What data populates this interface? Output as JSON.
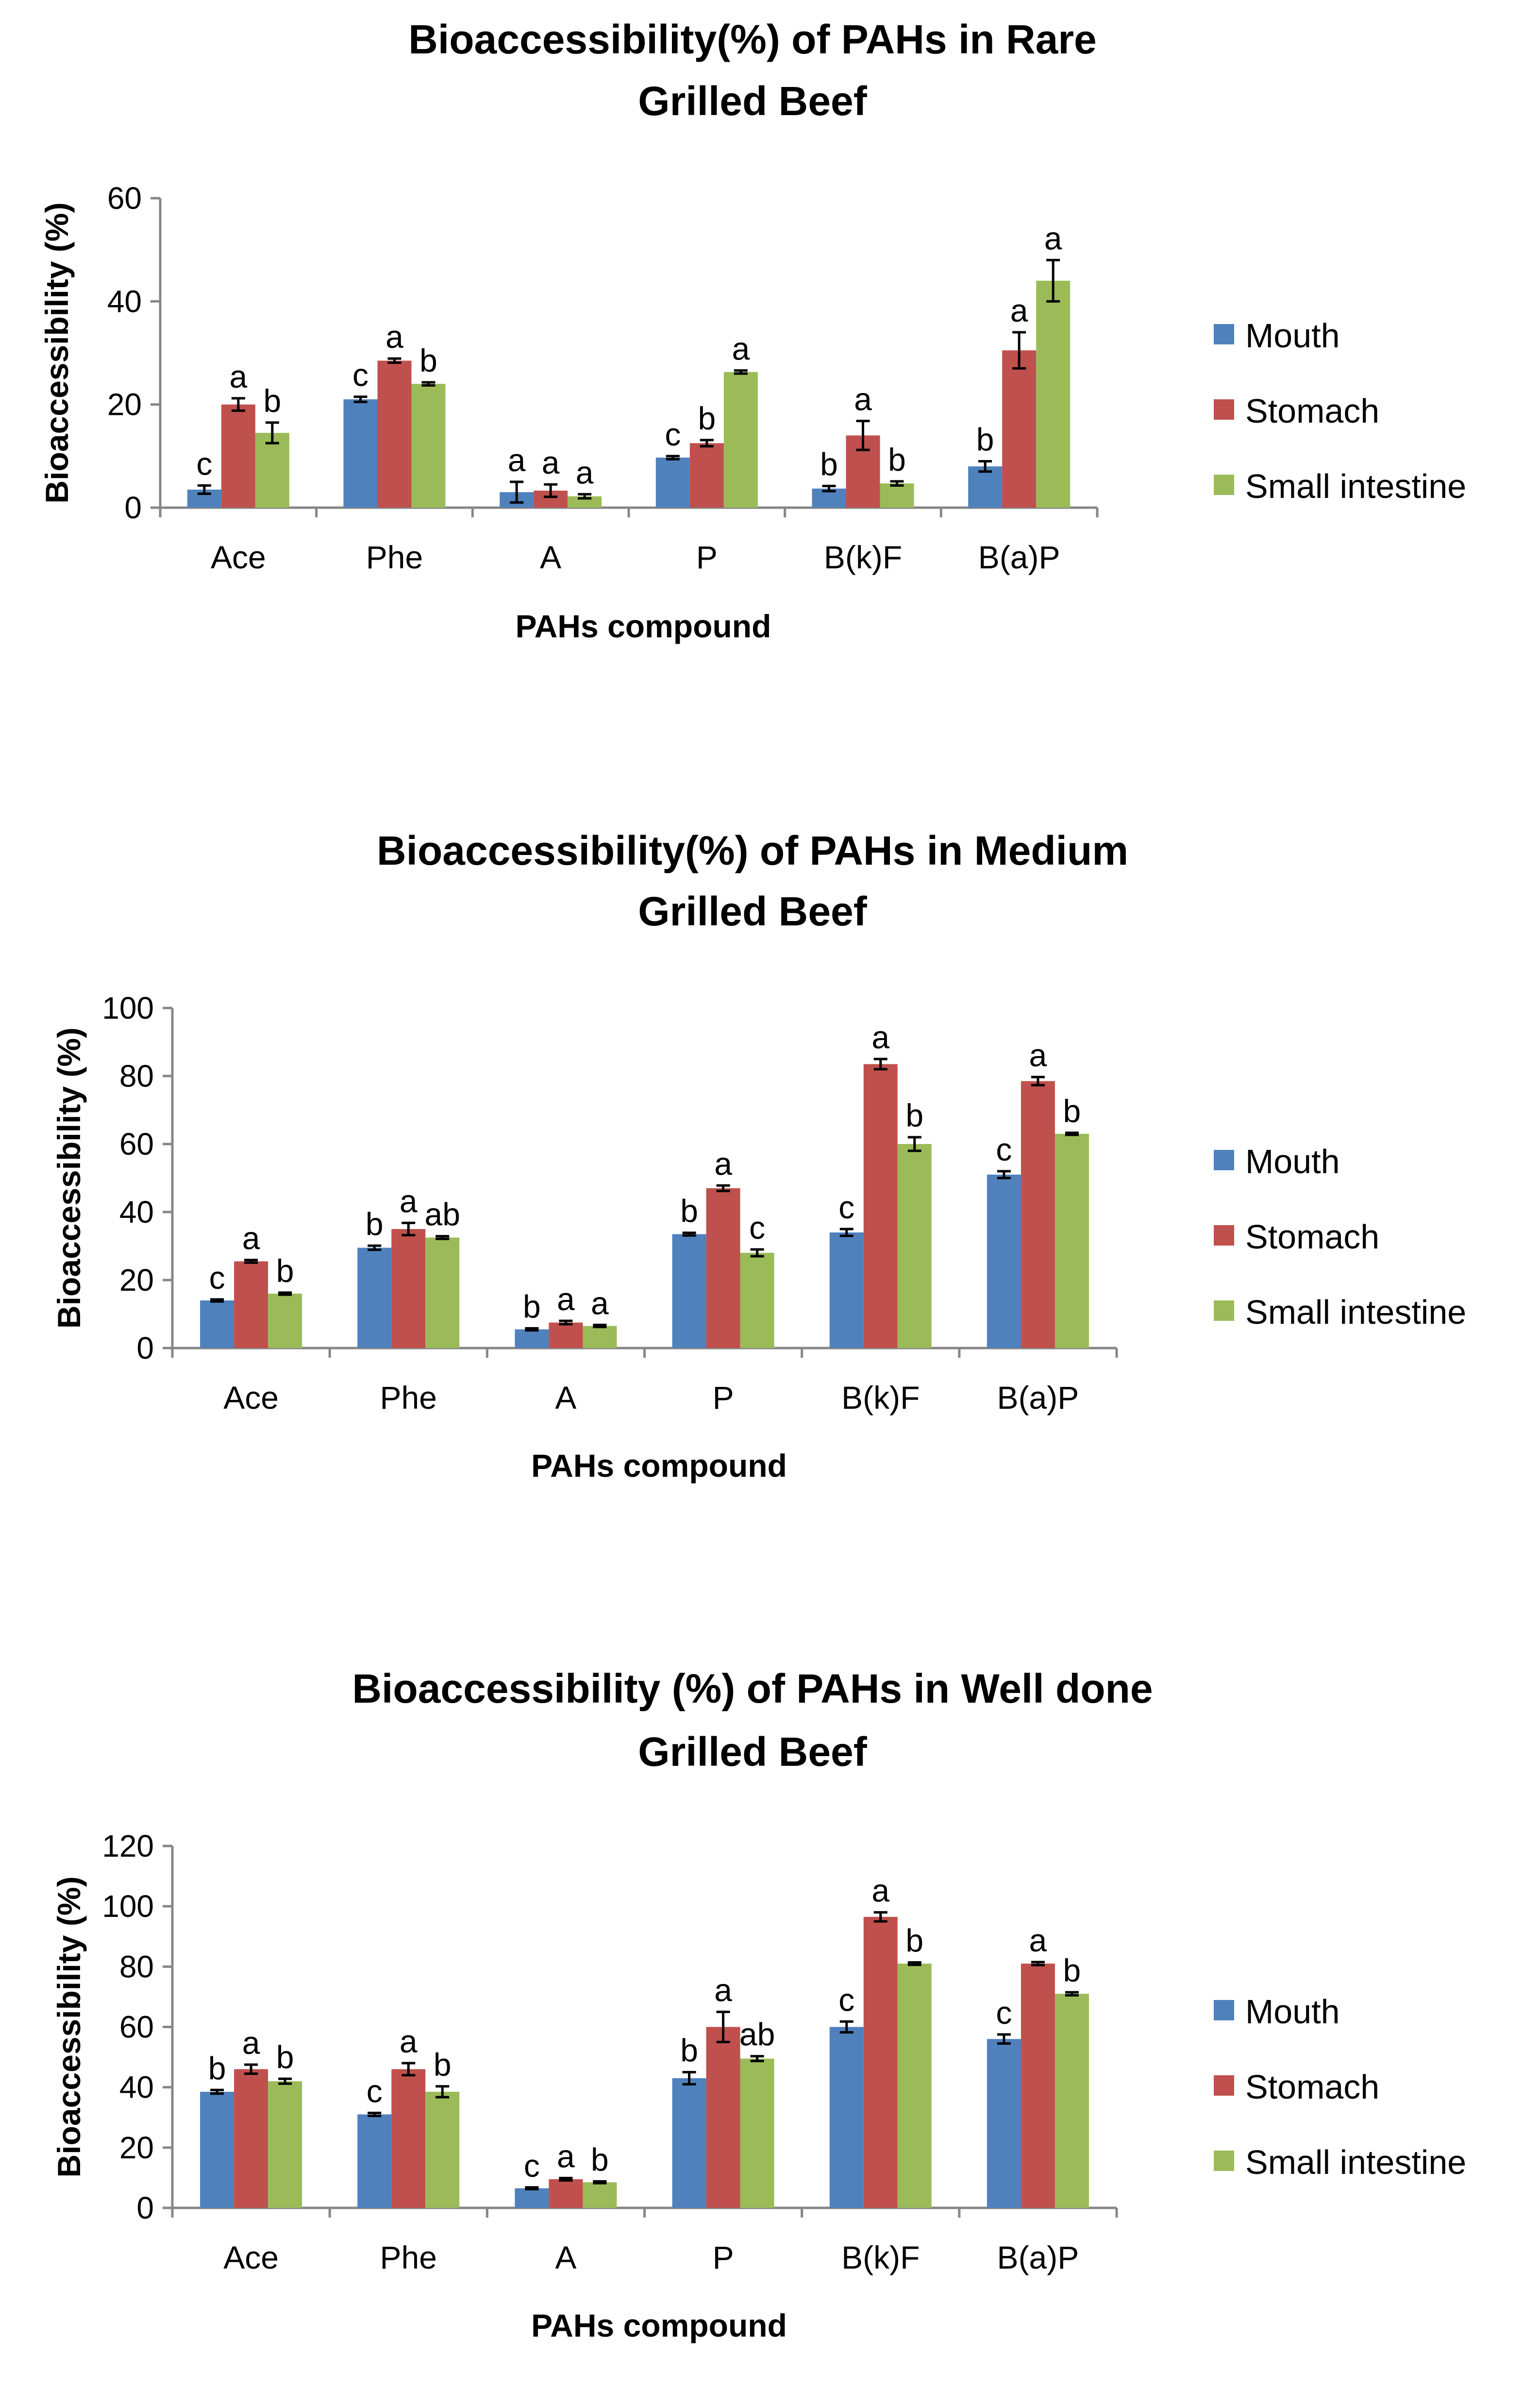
{
  "colors": {
    "mouth": "#4F81BD",
    "stomach": "#C0504D",
    "small_intestine": "#9BBB59",
    "axis": "#868686"
  },
  "chart_data": [
    {
      "type": "bar",
      "title": [
        "Bioaccessibility(%) of PAHs in Rare",
        "Grilled Beef"
      ],
      "xlabel": "PAHs compound",
      "ylabel": "Bioaccessibility (%)",
      "ylim": [
        0,
        60
      ],
      "yticks": [
        0,
        20,
        40,
        60
      ],
      "grid": false,
      "legend": "right",
      "categories": [
        "Ace",
        "Phe",
        "A",
        "P",
        "B(k)F",
        "B(a)P"
      ],
      "series": [
        {
          "name": "Mouth",
          "color": "#4F81BD",
          "values": [
            3.5,
            21.0,
            3.0,
            9.7,
            3.7,
            8.0
          ],
          "errors": [
            0.8,
            0.5,
            2.0,
            0.3,
            0.5,
            1.0
          ],
          "letters": [
            "c",
            "c",
            "a",
            "c",
            "b",
            "b"
          ]
        },
        {
          "name": "Stomach",
          "color": "#C0504D",
          "values": [
            20.0,
            28.5,
            3.3,
            12.5,
            14.0,
            30.5
          ],
          "errors": [
            1.2,
            0.4,
            1.2,
            0.6,
            2.8,
            3.5
          ],
          "letters": [
            "a",
            "a",
            "a",
            "b",
            "a",
            "a"
          ]
        },
        {
          "name": "Small intestine",
          "color": "#9BBB59",
          "values": [
            14.5,
            24.0,
            2.2,
            26.3,
            4.7,
            44.0
          ],
          "errors": [
            2.0,
            0.3,
            0.4,
            0.3,
            0.4,
            4.0
          ],
          "letters": [
            "b",
            "b",
            "a",
            "a",
            "b",
            "a"
          ]
        }
      ]
    },
    {
      "type": "bar",
      "title": [
        "Bioaccessibility(%) of PAHs in Medium",
        "Grilled Beef"
      ],
      "xlabel": "PAHs compound",
      "ylabel": "Bioaccessibility (%)",
      "ylim": [
        0,
        100
      ],
      "yticks": [
        0,
        20,
        40,
        60,
        80,
        100
      ],
      "grid": false,
      "legend": "right",
      "categories": [
        "Ace",
        "Phe",
        "A",
        "P",
        "B(k)F",
        "B(a)P"
      ],
      "series": [
        {
          "name": "Mouth",
          "color": "#4F81BD",
          "values": [
            14.0,
            29.5,
            5.5,
            33.5,
            34.0,
            51.0
          ],
          "errors": [
            0.3,
            0.6,
            0.3,
            0.4,
            1.0,
            1.0
          ],
          "letters": [
            "c",
            "b",
            "b",
            "b",
            "c",
            "c"
          ]
        },
        {
          "name": "Stomach",
          "color": "#C0504D",
          "values": [
            25.5,
            35.0,
            7.5,
            47.0,
            83.5,
            78.5
          ],
          "errors": [
            0.4,
            1.8,
            0.5,
            0.8,
            1.5,
            1.2
          ],
          "letters": [
            "a",
            "a",
            "a",
            "a",
            "a",
            "a"
          ]
        },
        {
          "name": "Small intestine",
          "color": "#9BBB59",
          "values": [
            16.0,
            32.5,
            6.5,
            28.0,
            60.0,
            63.0
          ],
          "errors": [
            0.3,
            0.4,
            0.3,
            1.0,
            2.0,
            0.3
          ],
          "letters": [
            "b",
            "ab",
            "a",
            "c",
            "b",
            "b"
          ]
        }
      ]
    },
    {
      "type": "bar",
      "title": [
        "Bioaccessibility (%) of PAHs in Well done",
        "Grilled Beef"
      ],
      "xlabel": "PAHs compound",
      "ylabel": "Bioaccessibility (%)",
      "ylim": [
        0,
        120
      ],
      "yticks": [
        0,
        20,
        40,
        60,
        80,
        100,
        120
      ],
      "grid": false,
      "legend": "right",
      "categories": [
        "Ace",
        "Phe",
        "A",
        "P",
        "B(k)F",
        "B(a)P"
      ],
      "series": [
        {
          "name": "Mouth",
          "color": "#4F81BD",
          "values": [
            38.5,
            31.0,
            6.5,
            43.0,
            60.0,
            56.0
          ],
          "errors": [
            0.6,
            0.5,
            0.3,
            2.0,
            1.8,
            1.5
          ],
          "letters": [
            "b",
            "c",
            "c",
            "b",
            "c",
            "c"
          ]
        },
        {
          "name": "Stomach",
          "color": "#C0504D",
          "values": [
            46.0,
            46.0,
            9.5,
            60.0,
            96.5,
            81.0
          ],
          "errors": [
            1.5,
            2.0,
            0.4,
            5.0,
            1.5,
            0.5
          ],
          "letters": [
            "a",
            "a",
            "a",
            "a",
            "a",
            "a"
          ]
        },
        {
          "name": "Small intestine",
          "color": "#9BBB59",
          "values": [
            42.0,
            38.5,
            8.5,
            49.5,
            81.0,
            71.0
          ],
          "errors": [
            0.8,
            1.8,
            0.3,
            0.8,
            0.4,
            0.5
          ],
          "letters": [
            "b",
            "b",
            "b",
            "ab",
            "b",
            "b"
          ]
        }
      ]
    }
  ]
}
